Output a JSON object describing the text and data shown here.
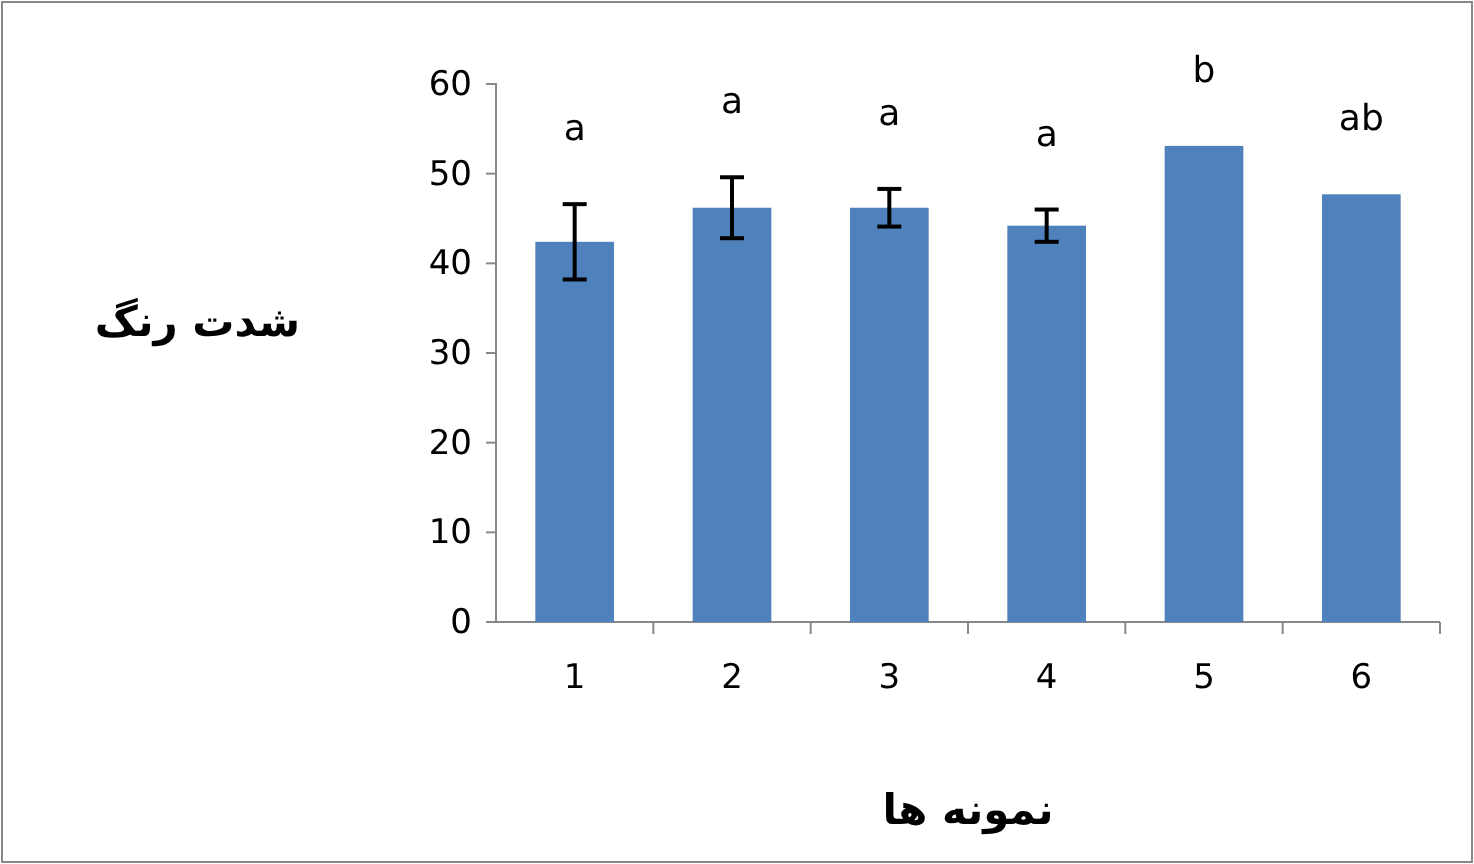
{
  "chart_data": {
    "type": "bar",
    "xlabel": "نمونه ها",
    "ylabel": "شدت رنگ",
    "categories": [
      "1",
      "2",
      "3",
      "4",
      "5",
      "6"
    ],
    "values": [
      42.4,
      46.2,
      46.2,
      44.2,
      53.1,
      47.7
    ],
    "errors": [
      4.2,
      3.4,
      2.1,
      1.8,
      null,
      null
    ],
    "color": "#4f81bd",
    "ylim": [
      0,
      60
    ],
    "yticks": [
      0,
      10,
      20,
      30,
      40,
      50,
      60
    ],
    "grid": false,
    "annotations": [
      {
        "text": "a",
        "x": "1",
        "y": 46.6
      },
      {
        "text": "a",
        "x": "2",
        "y": 49.6
      },
      {
        "text": "a",
        "x": "3",
        "y": 48.3
      },
      {
        "text": "a",
        "x": "4",
        "y": 46
      },
      {
        "text": "b",
        "x": "5",
        "y": 53.1
      },
      {
        "text": "ab",
        "x": "6",
        "y": 47.7
      }
    ]
  }
}
